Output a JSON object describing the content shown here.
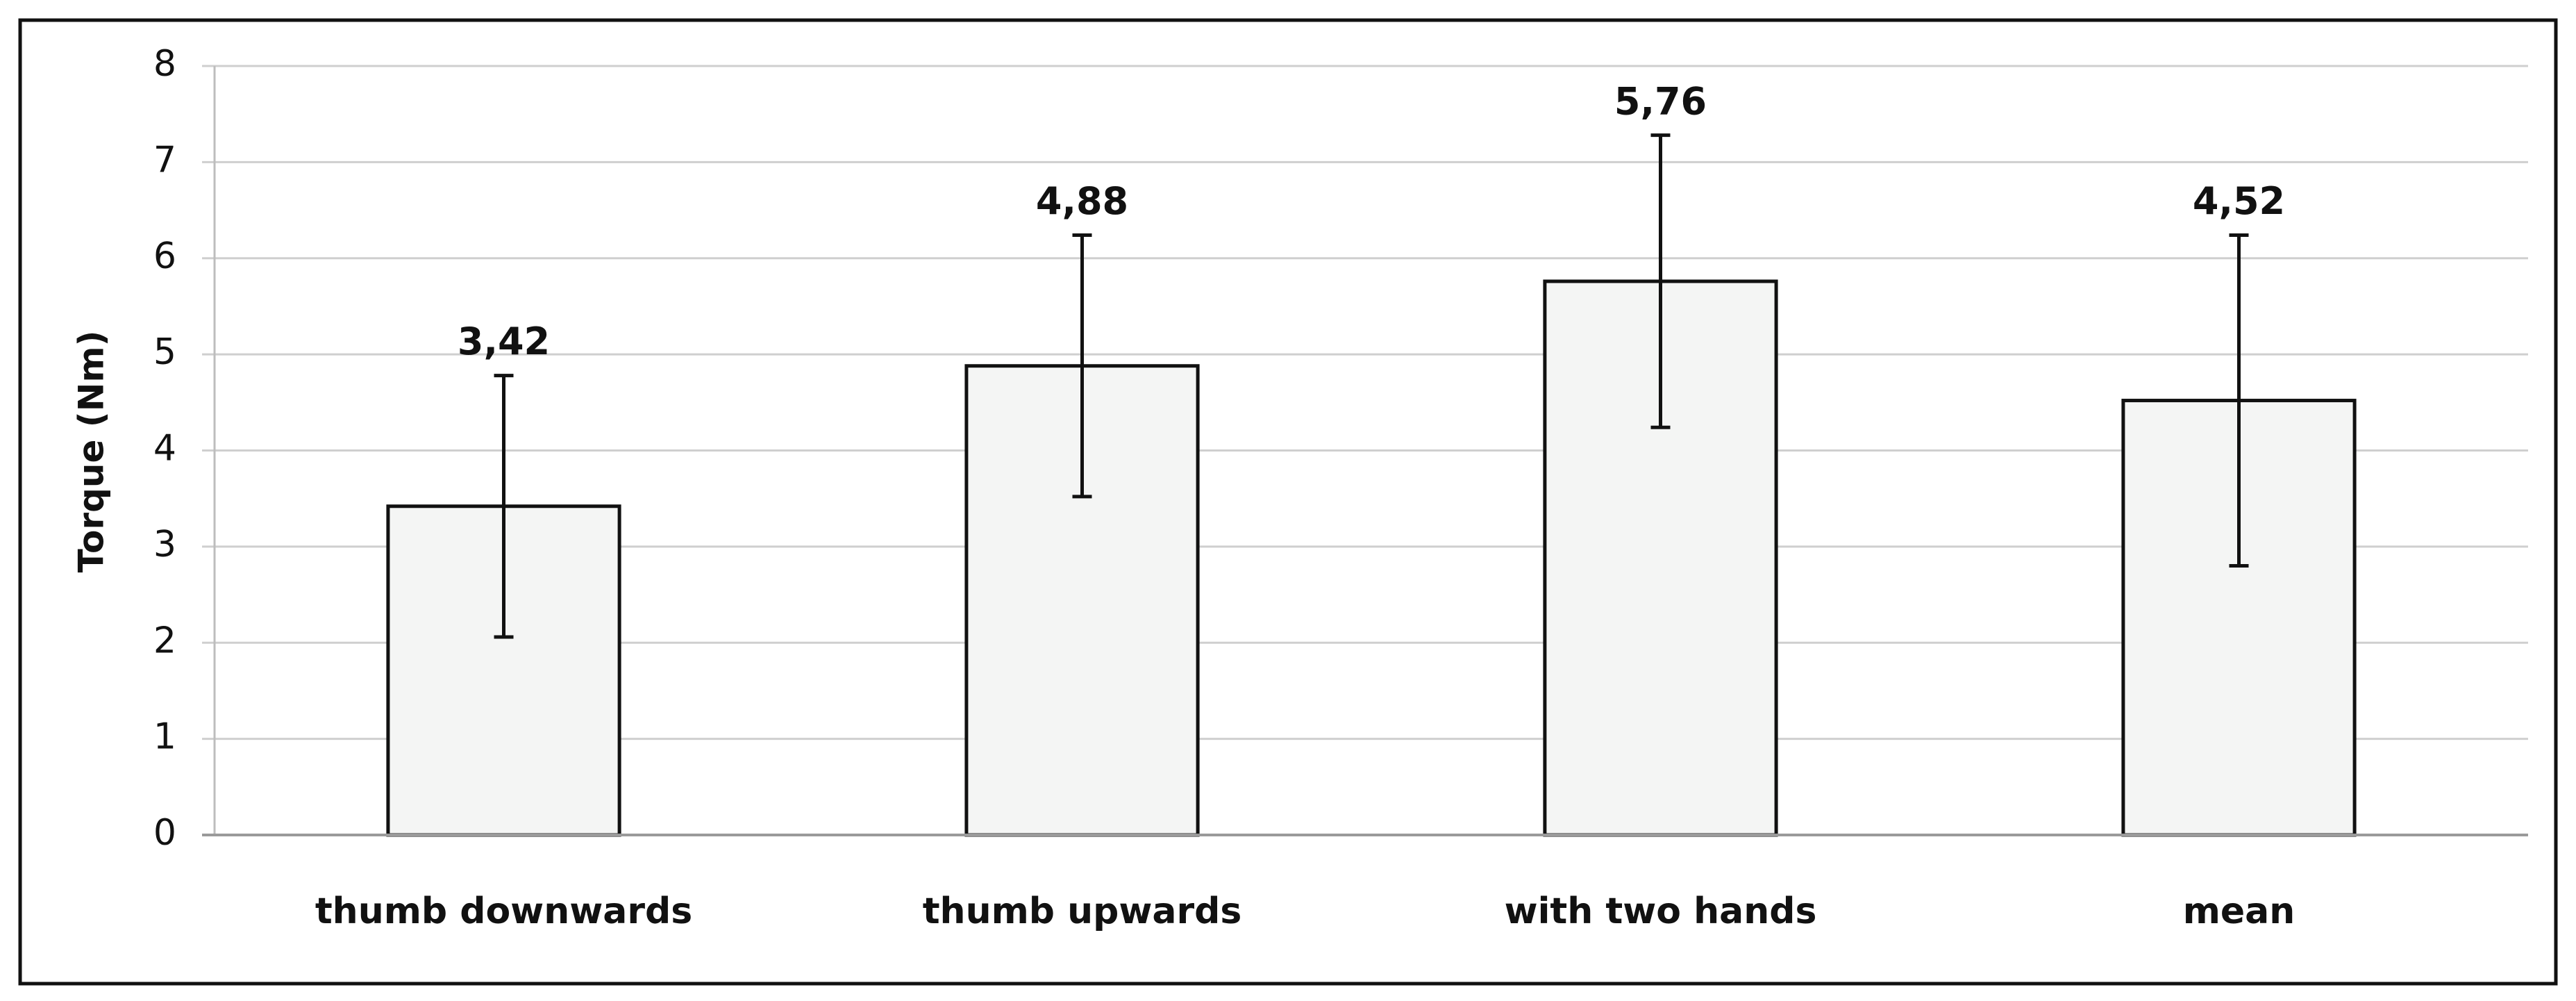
{
  "chart_data": {
    "type": "bar",
    "y_label": "Torque (Nm)",
    "categories": [
      "thumb downwards",
      "thumb upwards",
      "with two hands",
      "mean"
    ],
    "values": [
      3.42,
      4.88,
      5.76,
      4.52
    ],
    "value_labels": [
      "3,42",
      "4,88",
      "5,76",
      "4,52"
    ],
    "errors": [
      1.36,
      1.36,
      1.52,
      1.72
    ],
    "color": "#f4f5f4",
    "ylim": [
      0,
      8
    ],
    "yticks": [
      0,
      1,
      2,
      3,
      4,
      5,
      6,
      7,
      8
    ],
    "grid": true
  }
}
